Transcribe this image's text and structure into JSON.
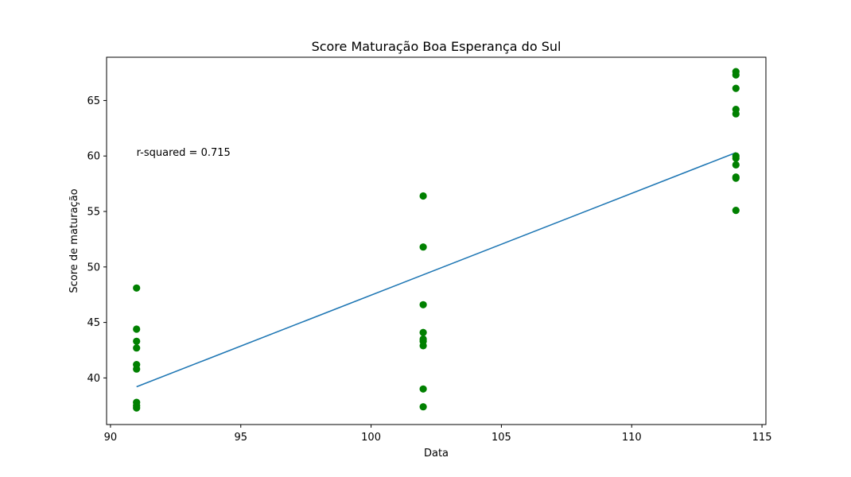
{
  "chart_data": {
    "type": "scatter",
    "title": "Score Maturação Boa Esperança do Sul",
    "xlabel": "Data",
    "ylabel": "Score de maturação",
    "xlim": [
      89.85,
      115.15
    ],
    "ylim": [
      35.8,
      68.9
    ],
    "xticks": [
      90,
      95,
      100,
      105,
      110,
      115
    ],
    "yticks": [
      40,
      45,
      50,
      55,
      60,
      65
    ],
    "grid": false,
    "annotation": {
      "text": "r-squared = 0.715",
      "x": 91,
      "y": 60
    },
    "series": [
      {
        "kind": "scatter",
        "color": "#008000",
        "points": [
          [
            91,
            48.1
          ],
          [
            91,
            44.4
          ],
          [
            91,
            43.3
          ],
          [
            91,
            42.7
          ],
          [
            91,
            41.2
          ],
          [
            91,
            40.8
          ],
          [
            91,
            37.8
          ],
          [
            91,
            37.5
          ],
          [
            91,
            37.3
          ],
          [
            102,
            56.4
          ],
          [
            102,
            51.8
          ],
          [
            102,
            46.6
          ],
          [
            102,
            44.1
          ],
          [
            102,
            43.5
          ],
          [
            102,
            43.3
          ],
          [
            102,
            42.9
          ],
          [
            102,
            39.0
          ],
          [
            102,
            37.4
          ],
          [
            114,
            67.6
          ],
          [
            114,
            67.3
          ],
          [
            114,
            66.1
          ],
          [
            114,
            64.2
          ],
          [
            114,
            63.8
          ],
          [
            114,
            60.0
          ],
          [
            114,
            59.8
          ],
          [
            114,
            59.2
          ],
          [
            114,
            58.1
          ],
          [
            114,
            58.0
          ],
          [
            114,
            55.1
          ]
        ]
      },
      {
        "kind": "line",
        "color": "#1f77b4",
        "points": [
          [
            91,
            39.2
          ],
          [
            114,
            60.3
          ]
        ]
      }
    ]
  }
}
